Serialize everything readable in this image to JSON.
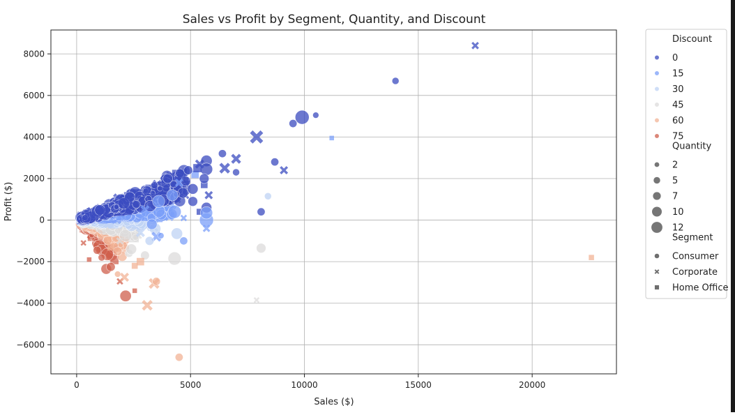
{
  "chart_data": {
    "type": "scatter",
    "title": "Sales vs Profit by Segment, Quantity, and Discount",
    "xlabel": "Sales ($)",
    "ylabel": "Profit ($)",
    "xlim": [
      -1130,
      23700
    ],
    "ylim": [
      -7400,
      9150
    ],
    "x_ticks": [
      0,
      5000,
      10000,
      15000,
      20000
    ],
    "y_ticks": [
      -6000,
      -4000,
      -2000,
      0,
      2000,
      4000,
      6000,
      8000
    ],
    "grid": true,
    "legend_position": "outside-right",
    "legend": {
      "discount": {
        "title": "Discount",
        "entries": [
          {
            "label": "0",
            "color": "#3b4cc0"
          },
          {
            "label": "15",
            "color": "#7b9ff9"
          },
          {
            "label": "30",
            "color": "#c0d4f5"
          },
          {
            "label": "45",
            "color": "#dddcdc"
          },
          {
            "label": "60",
            "color": "#f2b396"
          },
          {
            "label": "75",
            "color": "#d0604d"
          }
        ]
      },
      "quantity": {
        "title": "Quantity",
        "entries": [
          {
            "label": "2",
            "size": 2
          },
          {
            "label": "5",
            "size": 5
          },
          {
            "label": "7",
            "size": 7
          },
          {
            "label": "10",
            "size": 10
          },
          {
            "label": "12",
            "size": 12
          }
        ]
      },
      "segment": {
        "title": "Segment",
        "entries": [
          {
            "label": "Consumer",
            "marker": "circle"
          },
          {
            "label": "Corporate",
            "marker": "x"
          },
          {
            "label": "Home Office",
            "marker": "square"
          }
        ]
      }
    },
    "dense_clusters": [
      {
        "discount": 0,
        "x": [
          200,
          4800
        ],
        "y_slope": [
          0.2,
          0.52
        ],
        "n": 420
      },
      {
        "discount": 15,
        "x": [
          200,
          4200
        ],
        "y_slope": [
          0.04,
          0.22
        ],
        "n": 200
      },
      {
        "discount": 30,
        "x": [
          200,
          3500
        ],
        "y_slope": [
          -0.12,
          0.04
        ],
        "n": 150
      },
      {
        "discount": 45,
        "x": [
          200,
          2800
        ],
        "y_slope": [
          -0.35,
          -0.1
        ],
        "n": 100
      },
      {
        "discount": 60,
        "x": [
          200,
          2200
        ],
        "y_slope": [
          -0.7,
          -0.3
        ],
        "n": 90
      },
      {
        "discount": 75,
        "x": [
          200,
          1700
        ],
        "y_slope": [
          -1.3,
          -0.6
        ],
        "n": 80
      }
    ],
    "points": [
      {
        "x": 17500,
        "y": 8400,
        "segment": "Corporate",
        "quantity": 5,
        "discount": 0
      },
      {
        "x": 14000,
        "y": 6700,
        "segment": "Consumer",
        "quantity": 4,
        "discount": 0
      },
      {
        "x": 9900,
        "y": 4950,
        "segment": "Consumer",
        "quantity": 12,
        "discount": 0
      },
      {
        "x": 10500,
        "y": 5050,
        "segment": "Consumer",
        "quantity": 3,
        "discount": 0
      },
      {
        "x": 9500,
        "y": 4650,
        "segment": "Consumer",
        "quantity": 5,
        "discount": 0
      },
      {
        "x": 11200,
        "y": 3950,
        "segment": "Home Office",
        "quantity": 2,
        "discount": 15
      },
      {
        "x": 7900,
        "y": 4000,
        "segment": "Corporate",
        "quantity": 12,
        "discount": 0
      },
      {
        "x": 8700,
        "y": 2800,
        "segment": "Consumer",
        "quantity": 5,
        "discount": 0
      },
      {
        "x": 9100,
        "y": 2400,
        "segment": "Corporate",
        "quantity": 6,
        "discount": 0
      },
      {
        "x": 7000,
        "y": 2950,
        "segment": "Corporate",
        "quantity": 8,
        "discount": 0
      },
      {
        "x": 6400,
        "y": 3200,
        "segment": "Consumer",
        "quantity": 5,
        "discount": 0
      },
      {
        "x": 6500,
        "y": 2500,
        "segment": "Corporate",
        "quantity": 9,
        "discount": 0
      },
      {
        "x": 7000,
        "y": 2300,
        "segment": "Consumer",
        "quantity": 4,
        "discount": 0
      },
      {
        "x": 5700,
        "y": 2850,
        "segment": "Consumer",
        "quantity": 9,
        "discount": 0
      },
      {
        "x": 5700,
        "y": 2450,
        "segment": "Consumer",
        "quantity": 10,
        "discount": 0
      },
      {
        "x": 5400,
        "y": 2700,
        "segment": "Corporate",
        "quantity": 7,
        "discount": 0
      },
      {
        "x": 5200,
        "y": 2200,
        "segment": "Home Office",
        "quantity": 6,
        "discount": 15
      },
      {
        "x": 5600,
        "y": 1700,
        "segment": "Home Office",
        "quantity": 5,
        "discount": 0
      },
      {
        "x": 5100,
        "y": 1500,
        "segment": "Consumer",
        "quantity": 8,
        "discount": 0
      },
      {
        "x": 5100,
        "y": 900,
        "segment": "Consumer",
        "quantity": 7,
        "discount": 0
      },
      {
        "x": 5400,
        "y": 400,
        "segment": "Home Office",
        "quantity": 4,
        "discount": 0
      },
      {
        "x": 5700,
        "y": 600,
        "segment": "Consumer",
        "quantity": 8,
        "discount": 0
      },
      {
        "x": 5700,
        "y": 0,
        "segment": "Consumer",
        "quantity": 12,
        "discount": 15
      },
      {
        "x": 5700,
        "y": -400,
        "segment": "Corporate",
        "quantity": 5,
        "discount": 15
      },
      {
        "x": 5700,
        "y": 350,
        "segment": "Consumer",
        "quantity": 10,
        "discount": 15
      },
      {
        "x": 4700,
        "y": 100,
        "segment": "Corporate",
        "quantity": 4,
        "discount": 15
      },
      {
        "x": 4300,
        "y": 400,
        "segment": "Consumer",
        "quantity": 11,
        "discount": 15
      },
      {
        "x": 8100,
        "y": 400,
        "segment": "Consumer",
        "quantity": 5,
        "discount": 0
      },
      {
        "x": 8400,
        "y": 1150,
        "segment": "Consumer",
        "quantity": 4,
        "discount": 30
      },
      {
        "x": 8100,
        "y": -1350,
        "segment": "Consumer",
        "quantity": 7,
        "discount": 45
      },
      {
        "x": 7900,
        "y": -3850,
        "segment": "Corporate",
        "quantity": 3,
        "discount": 45
      },
      {
        "x": 22600,
        "y": -1800,
        "segment": "Home Office",
        "quantity": 3,
        "discount": 60
      },
      {
        "x": 4400,
        "y": -650,
        "segment": "Consumer",
        "quantity": 9,
        "discount": 30
      },
      {
        "x": 4700,
        "y": -1000,
        "segment": "Consumer",
        "quantity": 5,
        "discount": 15
      },
      {
        "x": 4300,
        "y": -1850,
        "segment": "Consumer",
        "quantity": 11,
        "discount": 45
      },
      {
        "x": 3500,
        "y": -800,
        "segment": "Corporate",
        "quantity": 8,
        "discount": 15
      },
      {
        "x": 3000,
        "y": -1700,
        "segment": "Consumer",
        "quantity": 6,
        "discount": 45
      },
      {
        "x": 2800,
        "y": -2000,
        "segment": "Home Office",
        "quantity": 6,
        "discount": 60
      },
      {
        "x": 2550,
        "y": -2200,
        "segment": "Home Office",
        "quantity": 4,
        "discount": 60
      },
      {
        "x": 3400,
        "y": -3050,
        "segment": "Corporate",
        "quantity": 9,
        "discount": 60
      },
      {
        "x": 3500,
        "y": -2950,
        "segment": "Consumer",
        "quantity": 5,
        "discount": 60
      },
      {
        "x": 3100,
        "y": -4100,
        "segment": "Corporate",
        "quantity": 9,
        "discount": 60
      },
      {
        "x": 4500,
        "y": -6600,
        "segment": "Consumer",
        "quantity": 5,
        "discount": 60
      },
      {
        "x": 2150,
        "y": -3650,
        "segment": "Consumer",
        "quantity": 9,
        "discount": 75
      },
      {
        "x": 2550,
        "y": -3400,
        "segment": "Home Office",
        "quantity": 2,
        "discount": 75
      },
      {
        "x": 1900,
        "y": -2950,
        "segment": "Corporate",
        "quantity": 4,
        "discount": 75
      },
      {
        "x": 2100,
        "y": -2750,
        "segment": "Corporate",
        "quantity": 7,
        "discount": 60
      },
      {
        "x": 1800,
        "y": -2600,
        "segment": "Consumer",
        "quantity": 3,
        "discount": 60
      },
      {
        "x": 1300,
        "y": -2350,
        "segment": "Consumer",
        "quantity": 8,
        "discount": 75
      },
      {
        "x": 1500,
        "y": -2250,
        "segment": "Consumer",
        "quantity": 6,
        "discount": 75
      },
      {
        "x": 550,
        "y": -1900,
        "segment": "Home Office",
        "quantity": 2,
        "discount": 75
      },
      {
        "x": 1100,
        "y": -1800,
        "segment": "Consumer",
        "quantity": 4,
        "discount": 75
      },
      {
        "x": 2000,
        "y": -1750,
        "segment": "Consumer",
        "quantity": 7,
        "discount": 60
      },
      {
        "x": 2300,
        "y": -1600,
        "segment": "Consumer",
        "quantity": 5,
        "discount": 45
      },
      {
        "x": 1800,
        "y": -1500,
        "segment": "Consumer",
        "quantity": 6,
        "discount": 60
      },
      {
        "x": 900,
        "y": -1450,
        "segment": "Consumer",
        "quantity": 5,
        "discount": 75
      },
      {
        "x": 1500,
        "y": -1300,
        "segment": "Home Office",
        "quantity": 5,
        "discount": 60
      },
      {
        "x": 2400,
        "y": -1400,
        "segment": "Consumer",
        "quantity": 8,
        "discount": 45
      },
      {
        "x": 1900,
        "y": -1000,
        "segment": "Corporate",
        "quantity": 5,
        "discount": 45
      },
      {
        "x": 300,
        "y": -1100,
        "segment": "Corporate",
        "quantity": 3,
        "discount": 75
      },
      {
        "x": 3200,
        "y": -1000,
        "segment": "Consumer",
        "quantity": 6,
        "discount": 30
      },
      {
        "x": 2800,
        "y": -600,
        "segment": "Corporate",
        "quantity": 7,
        "discount": 30
      },
      {
        "x": 3700,
        "y": -750,
        "segment": "Consumer",
        "quantity": 3,
        "discount": 15
      },
      {
        "x": 3300,
        "y": -200,
        "segment": "Consumer",
        "quantity": 8,
        "discount": 15
      },
      {
        "x": 4000,
        "y": 2000,
        "segment": "Consumer",
        "quantity": 7,
        "discount": 0
      },
      {
        "x": 4600,
        "y": 2200,
        "segment": "Home Office",
        "quantity": 6,
        "discount": 0
      },
      {
        "x": 4900,
        "y": 2400,
        "segment": "Consumer",
        "quantity": 6,
        "discount": 0
      },
      {
        "x": 4500,
        "y": 1800,
        "segment": "Corporate",
        "quantity": 6,
        "discount": 15
      },
      {
        "x": 3900,
        "y": 1400,
        "segment": "Home Office",
        "quantity": 6,
        "discount": 0
      },
      {
        "x": 4200,
        "y": 1200,
        "segment": "Consumer",
        "quantity": 9,
        "discount": 15
      },
      {
        "x": 3600,
        "y": 900,
        "segment": "Consumer",
        "quantity": 10,
        "discount": 15
      },
      {
        "x": 3000,
        "y": 500,
        "segment": "Corporate",
        "quantity": 7,
        "discount": 15
      },
      {
        "x": 5300,
        "y": 2500,
        "segment": "Home Office",
        "quantity": 7,
        "discount": 0
      },
      {
        "x": 5600,
        "y": 2000,
        "segment": "Consumer",
        "quantity": 7,
        "discount": 0
      },
      {
        "x": 5800,
        "y": 1200,
        "segment": "Corporate",
        "quantity": 6,
        "discount": 0
      }
    ]
  }
}
